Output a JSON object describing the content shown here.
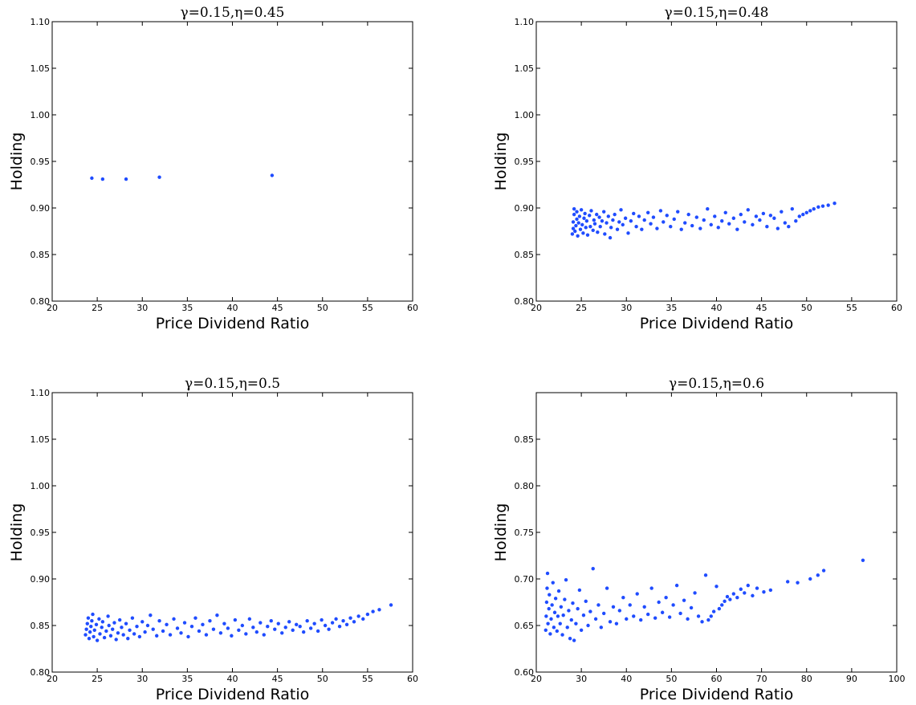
{
  "chart_data": [
    {
      "type": "scatter",
      "title": "γ=0.15,η=0.45",
      "xlabel": "Price Dividend Ratio",
      "ylabel": "Holding",
      "xlim": [
        20,
        60
      ],
      "ylim": [
        0.8,
        1.1
      ],
      "xticks": [
        20,
        25,
        30,
        35,
        40,
        45,
        50,
        55,
        60
      ],
      "yticks": [
        0.8,
        0.85,
        0.9,
        0.95,
        1.0,
        1.05,
        1.1
      ],
      "xtick_labels": [
        "20",
        "25",
        "30",
        "35",
        "40",
        "45",
        "50",
        "55",
        "60"
      ],
      "ytick_labels": [
        "0.80",
        "0.85",
        "0.90",
        "0.95",
        "1.00",
        "1.05",
        "1.10"
      ],
      "grid": false,
      "marker_color": "#1f4cff",
      "points": [
        [
          24.4,
          0.932
        ],
        [
          25.6,
          0.931
        ],
        [
          28.2,
          0.931
        ],
        [
          31.9,
          0.933
        ],
        [
          44.4,
          0.935
        ]
      ]
    },
    {
      "type": "scatter",
      "title": "γ=0.15,η=0.48",
      "xlabel": "Price Dividend Ratio",
      "ylabel": "Holding",
      "xlim": [
        20,
        60
      ],
      "ylim": [
        0.8,
        1.1
      ],
      "xticks": [
        20,
        25,
        30,
        35,
        40,
        45,
        50,
        55,
        60
      ],
      "yticks": [
        0.8,
        0.85,
        0.9,
        0.95,
        1.0,
        1.05,
        1.1
      ],
      "xtick_labels": [
        "20",
        "25",
        "30",
        "35",
        "40",
        "45",
        "50",
        "55",
        "60"
      ],
      "ytick_labels": [
        "0.80",
        "0.85",
        "0.90",
        "0.95",
        "1.00",
        "1.05",
        "1.10"
      ],
      "grid": false,
      "marker_color": "#1f4cff",
      "points": [
        [
          24.0,
          0.872
        ],
        [
          24.1,
          0.878
        ],
        [
          24.1,
          0.885
        ],
        [
          24.2,
          0.893
        ],
        [
          24.2,
          0.899
        ],
        [
          24.3,
          0.875
        ],
        [
          24.4,
          0.881
        ],
        [
          24.5,
          0.888
        ],
        [
          24.5,
          0.896
        ],
        [
          24.6,
          0.87
        ],
        [
          24.7,
          0.884
        ],
        [
          24.8,
          0.891
        ],
        [
          24.9,
          0.877
        ],
        [
          25.0,
          0.898
        ],
        [
          25.1,
          0.882
        ],
        [
          25.2,
          0.873
        ],
        [
          25.3,
          0.889
        ],
        [
          25.4,
          0.894
        ],
        [
          25.5,
          0.879
        ],
        [
          25.6,
          0.886
        ],
        [
          25.7,
          0.871
        ],
        [
          25.9,
          0.892
        ],
        [
          26.0,
          0.88
        ],
        [
          26.1,
          0.897
        ],
        [
          26.3,
          0.876
        ],
        [
          26.4,
          0.887
        ],
        [
          26.5,
          0.883
        ],
        [
          26.7,
          0.893
        ],
        [
          26.8,
          0.874
        ],
        [
          27.0,
          0.89
        ],
        [
          27.1,
          0.88
        ],
        [
          27.3,
          0.886
        ],
        [
          27.5,
          0.896
        ],
        [
          27.6,
          0.872
        ],
        [
          27.8,
          0.884
        ],
        [
          28.0,
          0.891
        ],
        [
          28.2,
          0.868
        ],
        [
          28.3,
          0.879
        ],
        [
          28.5,
          0.887
        ],
        [
          28.7,
          0.893
        ],
        [
          29.0,
          0.877
        ],
        [
          29.2,
          0.885
        ],
        [
          29.4,
          0.898
        ],
        [
          29.6,
          0.882
        ],
        [
          29.9,
          0.889
        ],
        [
          30.2,
          0.873
        ],
        [
          30.5,
          0.886
        ],
        [
          30.8,
          0.894
        ],
        [
          31.1,
          0.88
        ],
        [
          31.4,
          0.891
        ],
        [
          31.7,
          0.877
        ],
        [
          32.0,
          0.887
        ],
        [
          32.4,
          0.895
        ],
        [
          32.7,
          0.883
        ],
        [
          33.0,
          0.89
        ],
        [
          33.4,
          0.878
        ],
        [
          33.8,
          0.897
        ],
        [
          34.1,
          0.885
        ],
        [
          34.5,
          0.892
        ],
        [
          34.9,
          0.88
        ],
        [
          35.3,
          0.888
        ],
        [
          35.7,
          0.896
        ],
        [
          36.1,
          0.877
        ],
        [
          36.5,
          0.884
        ],
        [
          36.9,
          0.893
        ],
        [
          37.3,
          0.881
        ],
        [
          37.8,
          0.89
        ],
        [
          38.2,
          0.878
        ],
        [
          38.6,
          0.887
        ],
        [
          39.0,
          0.899
        ],
        [
          39.4,
          0.882
        ],
        [
          39.8,
          0.891
        ],
        [
          40.2,
          0.879
        ],
        [
          40.6,
          0.886
        ],
        [
          41.0,
          0.895
        ],
        [
          41.4,
          0.883
        ],
        [
          41.9,
          0.889
        ],
        [
          42.3,
          0.877
        ],
        [
          42.7,
          0.893
        ],
        [
          43.1,
          0.885
        ],
        [
          43.5,
          0.898
        ],
        [
          44.0,
          0.882
        ],
        [
          44.4,
          0.891
        ],
        [
          44.8,
          0.887
        ],
        [
          45.2,
          0.894
        ],
        [
          45.6,
          0.88
        ],
        [
          46.0,
          0.892
        ],
        [
          46.4,
          0.889
        ],
        [
          46.8,
          0.878
        ],
        [
          47.2,
          0.896
        ],
        [
          47.6,
          0.884
        ],
        [
          48.0,
          0.88
        ],
        [
          48.4,
          0.899
        ],
        [
          48.8,
          0.886
        ],
        [
          49.2,
          0.891
        ],
        [
          49.6,
          0.893
        ],
        [
          50.0,
          0.895
        ],
        [
          50.4,
          0.897
        ],
        [
          50.8,
          0.899
        ],
        [
          51.3,
          0.901
        ],
        [
          51.8,
          0.902
        ],
        [
          52.4,
          0.903
        ],
        [
          53.1,
          0.905
        ]
      ]
    },
    {
      "type": "scatter",
      "title": "γ=0.15,η=0.5",
      "xlabel": "Price Dividend Ratio",
      "ylabel": "Holding",
      "xlim": [
        20,
        60
      ],
      "ylim": [
        0.8,
        1.1
      ],
      "xticks": [
        20,
        25,
        30,
        35,
        40,
        45,
        50,
        55,
        60
      ],
      "yticks": [
        0.8,
        0.85,
        0.9,
        0.95,
        1.0,
        1.05,
        1.1
      ],
      "xtick_labels": [
        "20",
        "25",
        "30",
        "35",
        "40",
        "45",
        "50",
        "55",
        "60"
      ],
      "ytick_labels": [
        "0.80",
        "0.85",
        "0.90",
        "0.95",
        "1.00",
        "1.05",
        "1.10"
      ],
      "grid": false,
      "marker_color": "#1f4cff",
      "points": [
        [
          23.7,
          0.84
        ],
        [
          23.8,
          0.846
        ],
        [
          23.9,
          0.852
        ],
        [
          24.0,
          0.858
        ],
        [
          24.1,
          0.836
        ],
        [
          24.2,
          0.843
        ],
        [
          24.3,
          0.849
        ],
        [
          24.4,
          0.855
        ],
        [
          24.5,
          0.862
        ],
        [
          24.6,
          0.838
        ],
        [
          24.7,
          0.845
        ],
        [
          24.9,
          0.851
        ],
        [
          25.0,
          0.834
        ],
        [
          25.2,
          0.857
        ],
        [
          25.3,
          0.841
        ],
        [
          25.5,
          0.848
        ],
        [
          25.6,
          0.854
        ],
        [
          25.8,
          0.837
        ],
        [
          26.0,
          0.844
        ],
        [
          26.2,
          0.86
        ],
        [
          26.3,
          0.85
        ],
        [
          26.5,
          0.839
        ],
        [
          26.7,
          0.846
        ],
        [
          26.9,
          0.853
        ],
        [
          27.1,
          0.835
        ],
        [
          27.3,
          0.842
        ],
        [
          27.5,
          0.856
        ],
        [
          27.7,
          0.848
        ],
        [
          27.9,
          0.84
        ],
        [
          28.2,
          0.852
        ],
        [
          28.4,
          0.836
        ],
        [
          28.6,
          0.845
        ],
        [
          28.9,
          0.858
        ],
        [
          29.1,
          0.841
        ],
        [
          29.4,
          0.849
        ],
        [
          29.7,
          0.838
        ],
        [
          30.0,
          0.854
        ],
        [
          30.3,
          0.843
        ],
        [
          30.6,
          0.85
        ],
        [
          30.9,
          0.861
        ],
        [
          31.2,
          0.846
        ],
        [
          31.6,
          0.839
        ],
        [
          31.9,
          0.855
        ],
        [
          32.3,
          0.844
        ],
        [
          32.7,
          0.851
        ],
        [
          33.1,
          0.84
        ],
        [
          33.5,
          0.857
        ],
        [
          33.9,
          0.847
        ],
        [
          34.3,
          0.842
        ],
        [
          34.7,
          0.853
        ],
        [
          35.1,
          0.838
        ],
        [
          35.5,
          0.849
        ],
        [
          35.9,
          0.858
        ],
        [
          36.3,
          0.844
        ],
        [
          36.7,
          0.851
        ],
        [
          37.1,
          0.84
        ],
        [
          37.5,
          0.855
        ],
        [
          37.9,
          0.846
        ],
        [
          38.3,
          0.861
        ],
        [
          38.7,
          0.842
        ],
        [
          39.1,
          0.852
        ],
        [
          39.5,
          0.847
        ],
        [
          39.9,
          0.839
        ],
        [
          40.3,
          0.856
        ],
        [
          40.7,
          0.845
        ],
        [
          41.1,
          0.85
        ],
        [
          41.5,
          0.841
        ],
        [
          41.9,
          0.857
        ],
        [
          42.3,
          0.848
        ],
        [
          42.7,
          0.843
        ],
        [
          43.1,
          0.853
        ],
        [
          43.5,
          0.84
        ],
        [
          43.9,
          0.849
        ],
        [
          44.3,
          0.855
        ],
        [
          44.7,
          0.846
        ],
        [
          45.1,
          0.852
        ],
        [
          45.5,
          0.842
        ],
        [
          45.9,
          0.848
        ],
        [
          46.3,
          0.854
        ],
        [
          46.7,
          0.845
        ],
        [
          47.1,
          0.851
        ],
        [
          47.5,
          0.849
        ],
        [
          47.9,
          0.843
        ],
        [
          48.3,
          0.855
        ],
        [
          48.7,
          0.847
        ],
        [
          49.1,
          0.852
        ],
        [
          49.5,
          0.844
        ],
        [
          49.9,
          0.856
        ],
        [
          50.3,
          0.85
        ],
        [
          50.7,
          0.846
        ],
        [
          51.1,
          0.853
        ],
        [
          51.5,
          0.857
        ],
        [
          51.9,
          0.849
        ],
        [
          52.3,
          0.855
        ],
        [
          52.7,
          0.851
        ],
        [
          53.1,
          0.858
        ],
        [
          53.5,
          0.854
        ],
        [
          54.0,
          0.86
        ],
        [
          54.5,
          0.857
        ],
        [
          55.0,
          0.862
        ],
        [
          55.6,
          0.865
        ],
        [
          56.3,
          0.867
        ],
        [
          57.6,
          0.872
        ]
      ]
    },
    {
      "type": "scatter",
      "title": "γ=0.15,η=0.6",
      "xlabel": "Price Dividend Ratio",
      "ylabel": "Holding",
      "xlim": [
        20,
        100
      ],
      "ylim": [
        0.6,
        0.9
      ],
      "xticks": [
        20,
        30,
        40,
        50,
        60,
        70,
        80,
        90,
        100
      ],
      "yticks": [
        0.6,
        0.65,
        0.7,
        0.75,
        0.8,
        0.85
      ],
      "xtick_labels": [
        "20",
        "30",
        "40",
        "50",
        "60",
        "70",
        "80",
        "90",
        "100"
      ],
      "ytick_labels": [
        "0.60",
        "0.65",
        "0.70",
        "0.75",
        "0.80",
        "0.85"
      ],
      "grid": false,
      "marker_color": "#1f4cff",
      "points": [
        [
          22.1,
          0.645
        ],
        [
          22.2,
          0.66
        ],
        [
          22.3,
          0.675
        ],
        [
          22.4,
          0.69
        ],
        [
          22.5,
          0.706
        ],
        [
          22.6,
          0.652
        ],
        [
          22.8,
          0.668
        ],
        [
          22.9,
          0.683
        ],
        [
          23.1,
          0.641
        ],
        [
          23.3,
          0.657
        ],
        [
          23.5,
          0.672
        ],
        [
          23.7,
          0.696
        ],
        [
          23.9,
          0.648
        ],
        [
          24.1,
          0.664
        ],
        [
          24.3,
          0.679
        ],
        [
          24.6,
          0.644
        ],
        [
          24.8,
          0.66
        ],
        [
          25.0,
          0.687
        ],
        [
          25.3,
          0.652
        ],
        [
          25.5,
          0.67
        ],
        [
          25.8,
          0.64
        ],
        [
          26.0,
          0.661
        ],
        [
          26.3,
          0.678
        ],
        [
          26.6,
          0.699
        ],
        [
          26.9,
          0.648
        ],
        [
          27.2,
          0.666
        ],
        [
          27.5,
          0.636
        ],
        [
          27.8,
          0.656
        ],
        [
          28.1,
          0.674
        ],
        [
          28.4,
          0.634
        ],
        [
          28.8,
          0.652
        ],
        [
          29.2,
          0.668
        ],
        [
          29.6,
          0.688
        ],
        [
          30.0,
          0.645
        ],
        [
          30.5,
          0.661
        ],
        [
          31.0,
          0.676
        ],
        [
          31.5,
          0.65
        ],
        [
          32.0,
          0.665
        ],
        [
          32.6,
          0.711
        ],
        [
          33.2,
          0.657
        ],
        [
          33.8,
          0.672
        ],
        [
          34.4,
          0.648
        ],
        [
          35.0,
          0.663
        ],
        [
          35.7,
          0.69
        ],
        [
          36.4,
          0.654
        ],
        [
          37.1,
          0.67
        ],
        [
          37.8,
          0.652
        ],
        [
          38.5,
          0.666
        ],
        [
          39.3,
          0.68
        ],
        [
          40.0,
          0.657
        ],
        [
          40.8,
          0.672
        ],
        [
          41.6,
          0.66
        ],
        [
          42.4,
          0.684
        ],
        [
          43.2,
          0.656
        ],
        [
          44.0,
          0.67
        ],
        [
          44.8,
          0.662
        ],
        [
          45.6,
          0.69
        ],
        [
          46.4,
          0.658
        ],
        [
          47.2,
          0.675
        ],
        [
          48.0,
          0.664
        ],
        [
          48.8,
          0.68
        ],
        [
          49.6,
          0.659
        ],
        [
          50.4,
          0.672
        ],
        [
          51.2,
          0.693
        ],
        [
          52.0,
          0.663
        ],
        [
          52.8,
          0.677
        ],
        [
          53.6,
          0.657
        ],
        [
          54.4,
          0.669
        ],
        [
          55.2,
          0.685
        ],
        [
          56.0,
          0.66
        ],
        [
          56.8,
          0.654
        ],
        [
          57.6,
          0.704
        ],
        [
          58.2,
          0.656
        ],
        [
          58.8,
          0.66
        ],
        [
          59.4,
          0.665
        ],
        [
          60.0,
          0.692
        ],
        [
          60.6,
          0.668
        ],
        [
          61.2,
          0.672
        ],
        [
          61.8,
          0.676
        ],
        [
          62.4,
          0.681
        ],
        [
          63.0,
          0.678
        ],
        [
          63.8,
          0.684
        ],
        [
          64.6,
          0.68
        ],
        [
          65.4,
          0.689
        ],
        [
          66.2,
          0.685
        ],
        [
          67.0,
          0.693
        ],
        [
          68.0,
          0.682
        ],
        [
          69.0,
          0.69
        ],
        [
          70.5,
          0.686
        ],
        [
          72.0,
          0.688
        ],
        [
          75.8,
          0.697
        ],
        [
          78.0,
          0.696
        ],
        [
          80.8,
          0.7
        ],
        [
          82.5,
          0.704
        ],
        [
          83.8,
          0.709
        ],
        [
          92.5,
          0.72
        ]
      ]
    }
  ]
}
